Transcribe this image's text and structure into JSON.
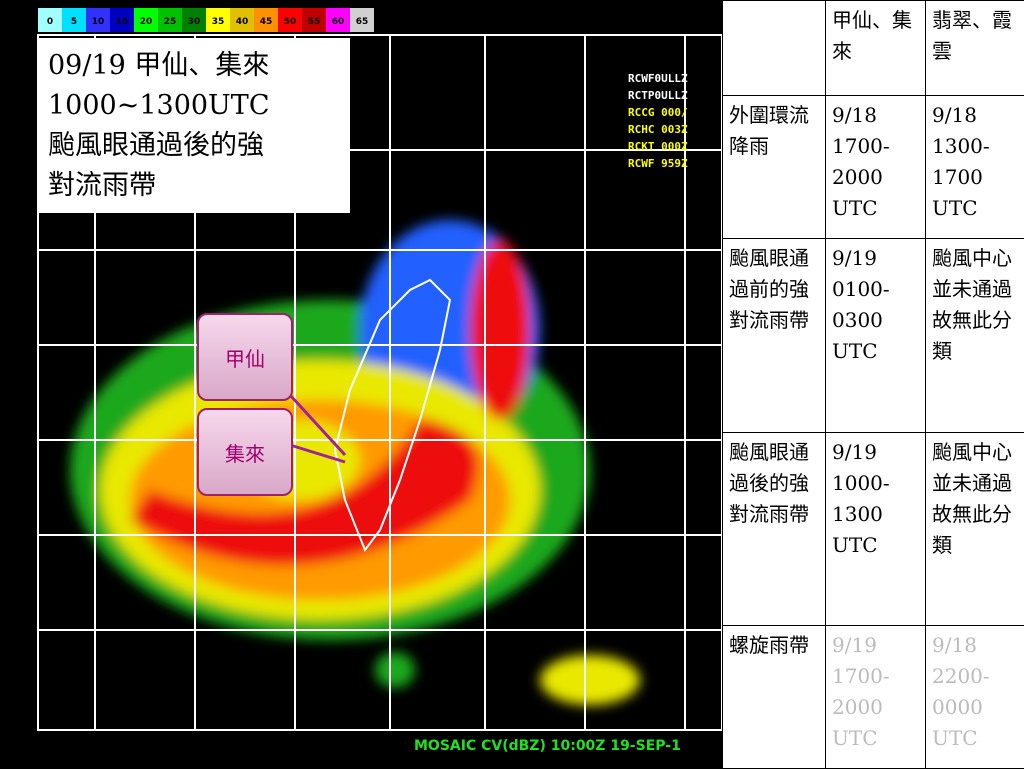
{
  "radar": {
    "colorbar": [
      "0",
      "5",
      "10",
      "15",
      "20",
      "25",
      "30",
      "35",
      "40",
      "45",
      "50",
      "55",
      "60",
      "65"
    ],
    "stations": [
      "RCWF0ULLZ",
      "RCTP0ULLZ",
      "RCCG 000/",
      "RCHC 003Z",
      "RCKT 000Z",
      "RCWF 959Z"
    ],
    "caption": "MOSAIC CV(dBZ) 10:00Z 19-SEP-1"
  },
  "note": {
    "lines": [
      "09/19 甲仙、集來",
      "1000~1300UTC",
      "颱風眼通過後的強",
      "對流雨帶"
    ]
  },
  "labels": [
    "甲仙",
    "集來"
  ],
  "table": {
    "header": [
      "甲仙、集來",
      "翡翠、霞雲"
    ],
    "rows": [
      [
        [
          "外圍環流降雨"
        ],
        [
          "9/18",
          "1700-",
          "2000",
          "UTC"
        ],
        [
          "9/18",
          "1300-",
          "1700",
          "UTC"
        ]
      ],
      [
        [
          "颱風眼通過前的強對流雨帶"
        ],
        [
          "9/19",
          "0100-",
          "0300",
          "UTC"
        ],
        [
          "颱風中心並未通過故無此分類"
        ]
      ],
      [
        [
          "颱風眼通過後的強對流雨帶"
        ],
        [
          "9/19",
          "1000-",
          "1300",
          "UTC"
        ],
        [
          "颱風中心並未通過故無此分類"
        ]
      ],
      [
        [
          "螺旋雨帶"
        ],
        [
          "9/19",
          "1700-",
          "2000",
          "UTC"
        ],
        [
          "9/18",
          "2200-",
          "0000",
          "UTC"
        ]
      ]
    ]
  }
}
